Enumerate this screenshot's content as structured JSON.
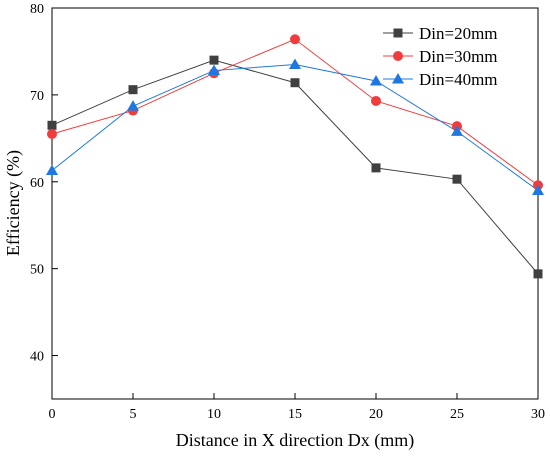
{
  "chart_data": {
    "type": "line",
    "title": "",
    "xlabel": "Distance in X direction Dx (mm)",
    "ylabel": "Efficiency (%)",
    "xlim": [
      0,
      30
    ],
    "ylim": [
      35,
      80
    ],
    "x_ticks": [
      0,
      5,
      10,
      15,
      20,
      25,
      30
    ],
    "y_ticks": [
      40,
      50,
      60,
      70,
      80
    ],
    "grid": false,
    "legend_position": "top-right",
    "x": [
      0,
      5,
      10,
      15,
      20,
      25,
      30
    ],
    "series": [
      {
        "name": "Din=20mm",
        "values": [
          66.5,
          70.6,
          74.0,
          71.4,
          61.6,
          60.3,
          49.4
        ],
        "color": "#404040",
        "marker": "square"
      },
      {
        "name": "Din=30mm",
        "values": [
          65.5,
          68.2,
          72.5,
          76.4,
          69.3,
          66.4,
          59.6
        ],
        "color": "#f03c3c",
        "marker": "circle"
      },
      {
        "name": "Din=40mm",
        "values": [
          61.3,
          68.7,
          72.8,
          73.5,
          71.6,
          65.8,
          59.0
        ],
        "color": "#1f78e0",
        "marker": "triangle"
      }
    ]
  }
}
